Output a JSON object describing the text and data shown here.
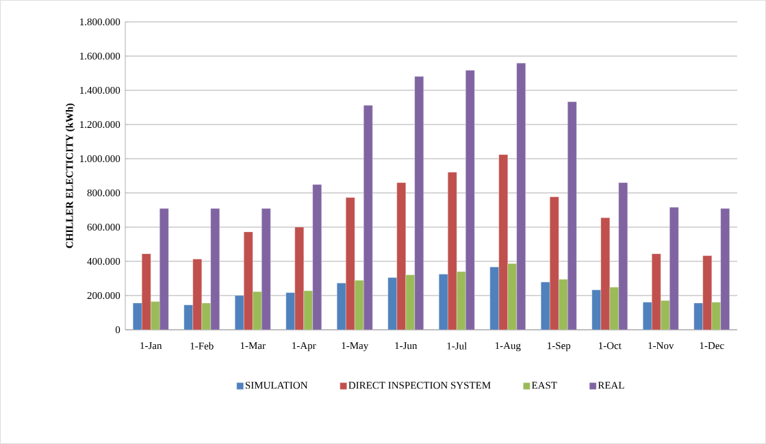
{
  "chart_data": {
    "type": "bar",
    "ylabel": "CHILLER ELECTICITY (kWh)",
    "categories": [
      "1-Jan",
      "1-Feb",
      "1-Mar",
      "1-Apr",
      "1-May",
      "1-Jun",
      "1-Jul",
      "1-Aug",
      "1-Sep",
      "1-Oct",
      "1-Nov",
      "1-Dec"
    ],
    "series": [
      {
        "name": "SIMULATION",
        "color": "#4f81bd",
        "values": [
          156000,
          145000,
          200000,
          217000,
          273000,
          305000,
          325000,
          367000,
          279000,
          233000,
          161000,
          156000
        ]
      },
      {
        "name": "DIRECT INSPECTION SYSTEM",
        "color": "#c0504d",
        "values": [
          444000,
          413000,
          572000,
          600000,
          773000,
          860000,
          921000,
          1024000,
          777000,
          655000,
          444000,
          433000
        ]
      },
      {
        "name": "EAST",
        "color": "#9bbb59",
        "values": [
          165000,
          156000,
          223000,
          228000,
          289000,
          321000,
          340000,
          387000,
          295000,
          249000,
          171000,
          161000
        ]
      },
      {
        "name": "REAL",
        "color": "#8064a2",
        "values": [
          709000,
          709000,
          709000,
          849000,
          1312000,
          1481000,
          1517000,
          1559000,
          1333000,
          860000,
          716000,
          709000
        ]
      }
    ],
    "ylim": [
      0,
      1800000
    ],
    "yticks": [
      0,
      {
        "value": 200000,
        "label": "200.000"
      },
      {
        "value": 400000,
        "label": "400.000"
      },
      {
        "value": 600000,
        "label": "600.000"
      },
      {
        "value": 800000,
        "label": "800.000"
      },
      {
        "value": 1000000,
        "label": "1.000.000"
      },
      {
        "value": 1200000,
        "label": "1.200.000"
      },
      {
        "value": 1400000,
        "label": "1.400.000"
      },
      {
        "value": 1600000,
        "label": "1.600.000"
      },
      {
        "value": 1800000,
        "label": "1.800.000"
      }
    ],
    "grid": "y",
    "legend": "bottom"
  }
}
